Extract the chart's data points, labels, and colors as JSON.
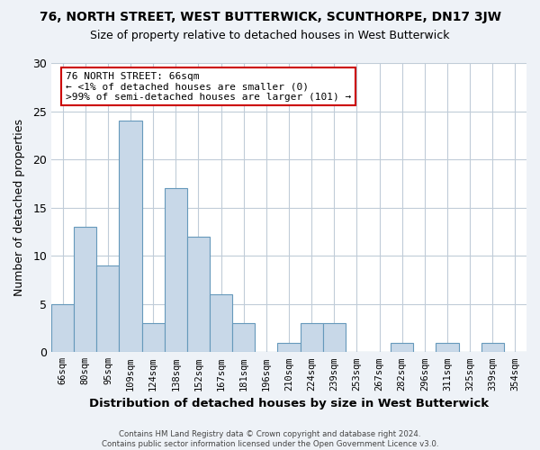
{
  "title": "76, NORTH STREET, WEST BUTTERWICK, SCUNTHORPE, DN17 3JW",
  "subtitle": "Size of property relative to detached houses in West Butterwick",
  "xlabel": "Distribution of detached houses by size in West Butterwick",
  "ylabel": "Number of detached properties",
  "bar_labels": [
    "66sqm",
    "80sqm",
    "95sqm",
    "109sqm",
    "124sqm",
    "138sqm",
    "152sqm",
    "167sqm",
    "181sqm",
    "196sqm",
    "210sqm",
    "224sqm",
    "239sqm",
    "253sqm",
    "267sqm",
    "282sqm",
    "296sqm",
    "311sqm",
    "325sqm",
    "339sqm",
    "354sqm"
  ],
  "bar_values": [
    5,
    13,
    9,
    24,
    3,
    17,
    12,
    6,
    3,
    0,
    1,
    3,
    3,
    0,
    0,
    1,
    0,
    1,
    0,
    1,
    0
  ],
  "bar_color": "#c8d8e8",
  "bar_edge_color": "#6699bb",
  "ylim": [
    0,
    30
  ],
  "yticks": [
    0,
    5,
    10,
    15,
    20,
    25,
    30
  ],
  "annotation_line1": "76 NORTH STREET: 66sqm",
  "annotation_line2": "← <1% of detached houses are smaller (0)",
  "annotation_line3": ">99% of semi-detached houses are larger (101) →",
  "annotation_box_color": "#ffffff",
  "annotation_box_edge_color": "#cc0000",
  "footer_text": "Contains HM Land Registry data © Crown copyright and database right 2024.\nContains public sector information licensed under the Open Government Licence v3.0.",
  "background_color": "#eef2f7",
  "plot_background": "#ffffff",
  "grid_color": "#c0ccd8"
}
